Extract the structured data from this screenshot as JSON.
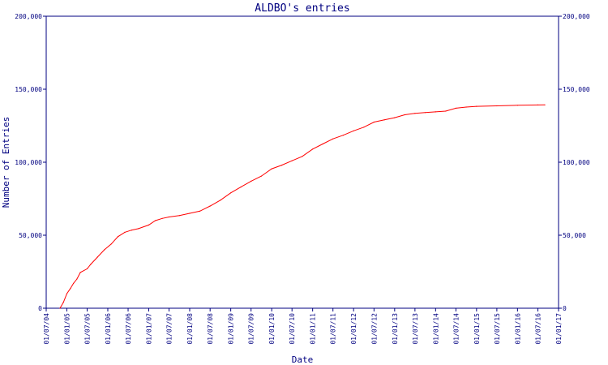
{
  "colors": {
    "axis": "#000080",
    "series": "#ff0000",
    "background": "#ffffff"
  },
  "chart_data": {
    "type": "line",
    "title": "ALDBO's entries",
    "xlabel": "Date",
    "ylabel": "Number of Entries",
    "ylim": [
      0,
      200000
    ],
    "xlim": [
      "2004-07-01",
      "2017-01-01"
    ],
    "grid": false,
    "legend": "none",
    "y_ticks": [
      {
        "value": 0,
        "label": "0"
      },
      {
        "value": 50000,
        "label": "50,000"
      },
      {
        "value": 100000,
        "label": "100,000"
      },
      {
        "value": 150000,
        "label": "150,000"
      },
      {
        "value": 200000,
        "label": "200,000"
      }
    ],
    "x_ticks": [
      {
        "date": "2004-07-01",
        "label": "01/07/04"
      },
      {
        "date": "2005-01-01",
        "label": "01/01/05"
      },
      {
        "date": "2005-07-01",
        "label": "01/07/05"
      },
      {
        "date": "2006-01-01",
        "label": "01/01/06"
      },
      {
        "date": "2006-07-01",
        "label": "01/07/06"
      },
      {
        "date": "2007-01-01",
        "label": "01/01/07"
      },
      {
        "date": "2007-07-01",
        "label": "01/07/07"
      },
      {
        "date": "2008-01-01",
        "label": "01/01/08"
      },
      {
        "date": "2008-07-01",
        "label": "01/07/08"
      },
      {
        "date": "2009-01-01",
        "label": "01/01/09"
      },
      {
        "date": "2009-07-01",
        "label": "01/07/09"
      },
      {
        "date": "2010-01-01",
        "label": "01/01/10"
      },
      {
        "date": "2010-07-01",
        "label": "01/07/10"
      },
      {
        "date": "2011-01-01",
        "label": "01/01/11"
      },
      {
        "date": "2011-07-01",
        "label": "01/07/11"
      },
      {
        "date": "2012-01-01",
        "label": "01/01/12"
      },
      {
        "date": "2012-07-01",
        "label": "01/07/12"
      },
      {
        "date": "2013-01-01",
        "label": "01/01/13"
      },
      {
        "date": "2013-07-01",
        "label": "01/07/13"
      },
      {
        "date": "2014-01-01",
        "label": "01/01/14"
      },
      {
        "date": "2014-07-01",
        "label": "01/07/14"
      },
      {
        "date": "2015-01-01",
        "label": "01/01/15"
      },
      {
        "date": "2015-07-01",
        "label": "01/07/15"
      },
      {
        "date": "2016-01-01",
        "label": "01/01/16"
      },
      {
        "date": "2016-07-01",
        "label": "01/07/16"
      },
      {
        "date": "2017-01-01",
        "label": "01/01/17"
      }
    ],
    "series": [
      {
        "name": "",
        "points": [
          {
            "x": "2004-11-01",
            "y": 0
          },
          {
            "x": "2004-12-01",
            "y": 4000
          },
          {
            "x": "2005-01-01",
            "y": 10000
          },
          {
            "x": "2005-02-01",
            "y": 13500
          },
          {
            "x": "2005-03-01",
            "y": 17000
          },
          {
            "x": "2005-04-01",
            "y": 20000
          },
          {
            "x": "2005-05-01",
            "y": 24500
          },
          {
            "x": "2005-07-01",
            "y": 27000
          },
          {
            "x": "2005-08-01",
            "y": 30000
          },
          {
            "x": "2005-10-01",
            "y": 35000
          },
          {
            "x": "2005-12-01",
            "y": 40000
          },
          {
            "x": "2006-02-01",
            "y": 44000
          },
          {
            "x": "2006-04-01",
            "y": 49000
          },
          {
            "x": "2006-06-01",
            "y": 52000
          },
          {
            "x": "2006-08-01",
            "y": 53500
          },
          {
            "x": "2006-10-01",
            "y": 54500
          },
          {
            "x": "2007-01-01",
            "y": 57000
          },
          {
            "x": "2007-03-01",
            "y": 60000
          },
          {
            "x": "2007-05-01",
            "y": 61500
          },
          {
            "x": "2007-07-01",
            "y": 62500
          },
          {
            "x": "2007-10-01",
            "y": 63500
          },
          {
            "x": "2008-01-01",
            "y": 65000
          },
          {
            "x": "2008-04-01",
            "y": 66500
          },
          {
            "x": "2008-07-01",
            "y": 70000
          },
          {
            "x": "2008-10-01",
            "y": 74000
          },
          {
            "x": "2009-01-01",
            "y": 79000
          },
          {
            "x": "2009-04-01",
            "y": 83000
          },
          {
            "x": "2009-07-01",
            "y": 87000
          },
          {
            "x": "2009-10-01",
            "y": 90500
          },
          {
            "x": "2010-01-01",
            "y": 95500
          },
          {
            "x": "2010-04-01",
            "y": 98000
          },
          {
            "x": "2010-07-01",
            "y": 101000
          },
          {
            "x": "2010-10-01",
            "y": 104000
          },
          {
            "x": "2011-01-01",
            "y": 109000
          },
          {
            "x": "2011-04-01",
            "y": 112500
          },
          {
            "x": "2011-07-01",
            "y": 116000
          },
          {
            "x": "2011-10-01",
            "y": 118500
          },
          {
            "x": "2012-01-01",
            "y": 121500
          },
          {
            "x": "2012-04-01",
            "y": 124000
          },
          {
            "x": "2012-07-01",
            "y": 127500
          },
          {
            "x": "2012-10-01",
            "y": 129000
          },
          {
            "x": "2013-01-01",
            "y": 130500
          },
          {
            "x": "2013-04-01",
            "y": 132500
          },
          {
            "x": "2013-07-01",
            "y": 133500
          },
          {
            "x": "2013-10-01",
            "y": 134000
          },
          {
            "x": "2014-01-01",
            "y": 134500
          },
          {
            "x": "2014-04-01",
            "y": 135000
          },
          {
            "x": "2014-07-01",
            "y": 137000
          },
          {
            "x": "2014-10-01",
            "y": 137800
          },
          {
            "x": "2015-01-01",
            "y": 138300
          },
          {
            "x": "2015-07-01",
            "y": 138600
          },
          {
            "x": "2016-01-01",
            "y": 139000
          },
          {
            "x": "2016-07-01",
            "y": 139200
          },
          {
            "x": "2016-09-01",
            "y": 139300
          }
        ]
      }
    ]
  }
}
